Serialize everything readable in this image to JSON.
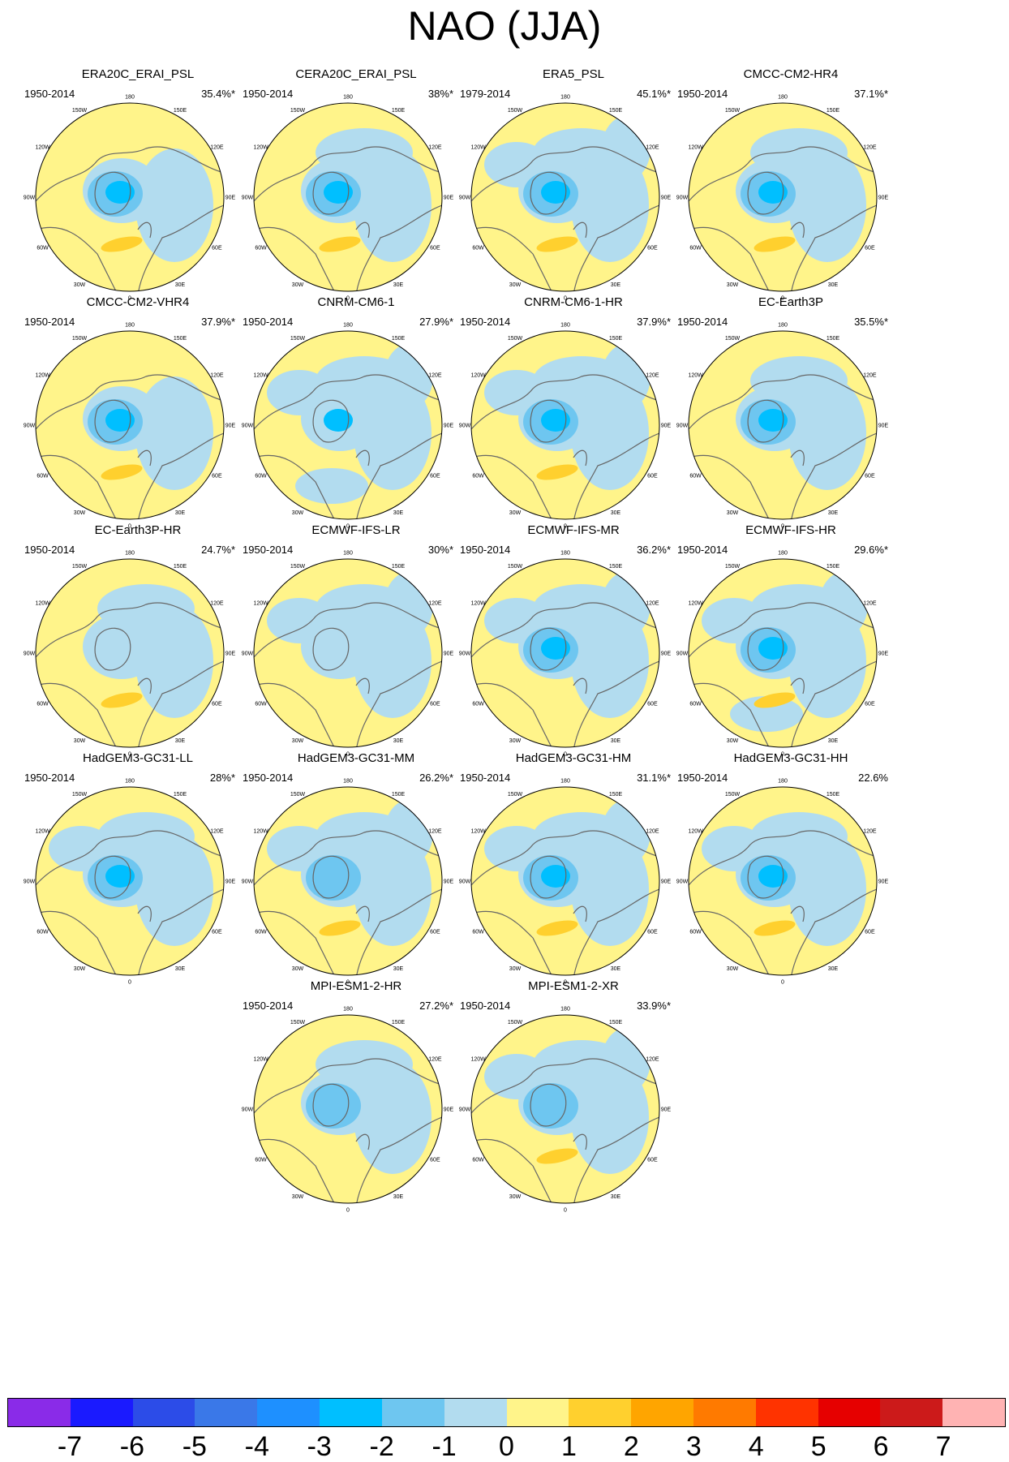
{
  "title": "NAO (JJA)",
  "map": {
    "projection": "north-polar-stereographic",
    "lon_labels": [
      "180",
      "150W",
      "150E",
      "120W",
      "120E",
      "90W",
      "90E",
      "60W",
      "60E",
      "30W",
      "30E",
      "0"
    ],
    "land_outline_color": "#666666",
    "positive_color": "#fff48a",
    "negative_color": "#b2dcef"
  },
  "panels": [
    {
      "name": "ERA20C_ERAI_PSL",
      "period": "1950-2014",
      "variance": "35.4%*"
    },
    {
      "name": "CERA20C_ERAI_PSL",
      "period": "1950-2014",
      "variance": "38%*"
    },
    {
      "name": "ERA5_PSL",
      "period": "1979-2014",
      "variance": "45.1%*"
    },
    {
      "name": "CMCC-CM2-HR4",
      "period": "1950-2014",
      "variance": "37.1%*"
    },
    {
      "name": "CMCC-CM2-VHR4",
      "period": "1950-2014",
      "variance": "37.9%*"
    },
    {
      "name": "CNRM-CM6-1",
      "period": "1950-2014",
      "variance": "27.9%*"
    },
    {
      "name": "CNRM-CM6-1-HR",
      "period": "1950-2014",
      "variance": "37.9%*"
    },
    {
      "name": "EC-Earth3P",
      "period": "1950-2014",
      "variance": "35.5%*"
    },
    {
      "name": "EC-Earth3P-HR",
      "period": "1950-2014",
      "variance": "24.7%*"
    },
    {
      "name": "ECMWF-IFS-LR",
      "period": "1950-2014",
      "variance": "30%*"
    },
    {
      "name": "ECMWF-IFS-MR",
      "period": "1950-2014",
      "variance": "36.2%*"
    },
    {
      "name": "ECMWF-IFS-HR",
      "period": "1950-2014",
      "variance": "29.6%*"
    },
    {
      "name": "HadGEM3-GC31-LL",
      "period": "1950-2014",
      "variance": "28%*"
    },
    {
      "name": "HadGEM3-GC31-MM",
      "period": "1950-2014",
      "variance": "26.2%*"
    },
    {
      "name": "HadGEM3-GC31-HM",
      "period": "1950-2014",
      "variance": "31.1%*"
    },
    {
      "name": "HadGEM3-GC31-HH",
      "period": "1950-2014",
      "variance": "22.6%"
    },
    {
      "name": "MPI-ESM1-2-HR",
      "period": "1950-2014",
      "variance": "27.2%*"
    },
    {
      "name": "MPI-ESM1-2-XR",
      "period": "1950-2014",
      "variance": "33.9%*"
    }
  ],
  "colorbar": {
    "labels": [
      "-7",
      "-6",
      "-5",
      "-4",
      "-3",
      "-2",
      "-1",
      "0",
      "1",
      "2",
      "3",
      "4",
      "5",
      "6",
      "7"
    ],
    "colors": [
      "#8a2be8",
      "#1a1aff",
      "#2c4ce8",
      "#3a78e8",
      "#1e90ff",
      "#00bfff",
      "#6ec6f0",
      "#b2dcef",
      "#fff48a",
      "#ffd02e",
      "#ffa500",
      "#ff7a00",
      "#ff3300",
      "#e60000",
      "#cc1a1a",
      "#ffb3b3"
    ]
  }
}
